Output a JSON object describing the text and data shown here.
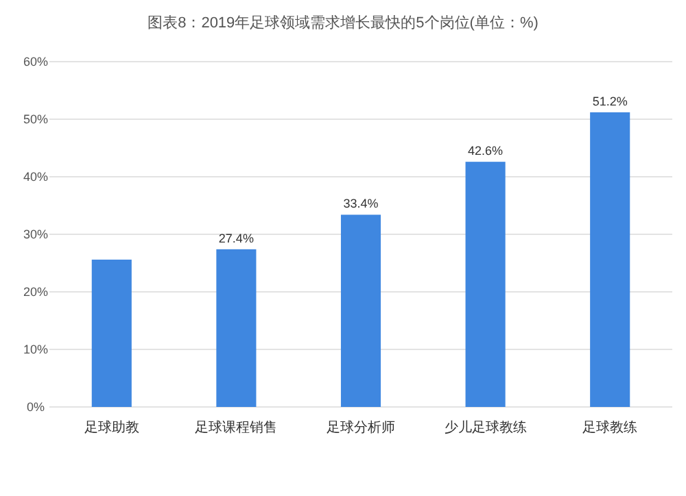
{
  "chart_data": {
    "type": "bar",
    "title": "图表8：2019年足球领域需求增长最快的5个岗位(单位：%)",
    "categories": [
      "足球助教",
      "足球课程销售",
      "足球分析师",
      "少儿足球教练",
      "足球教练"
    ],
    "values": [
      25.6,
      27.4,
      33.4,
      42.6,
      51.2
    ],
    "value_labels": [
      null,
      "27.4%",
      "33.4%",
      "42.6%",
      "51.2%"
    ],
    "color": "#3f87e0",
    "ylim": [
      0,
      60
    ],
    "yticks": [
      {
        "value": 0,
        "label": "0%"
      },
      {
        "value": 10,
        "label": "10%"
      },
      {
        "value": 20,
        "label": "20%"
      },
      {
        "value": 30,
        "label": "30%"
      },
      {
        "value": 40,
        "label": "40%"
      },
      {
        "value": 50,
        "label": "50%"
      },
      {
        "value": 60,
        "label": "60%"
      }
    ],
    "grid": "y"
  }
}
